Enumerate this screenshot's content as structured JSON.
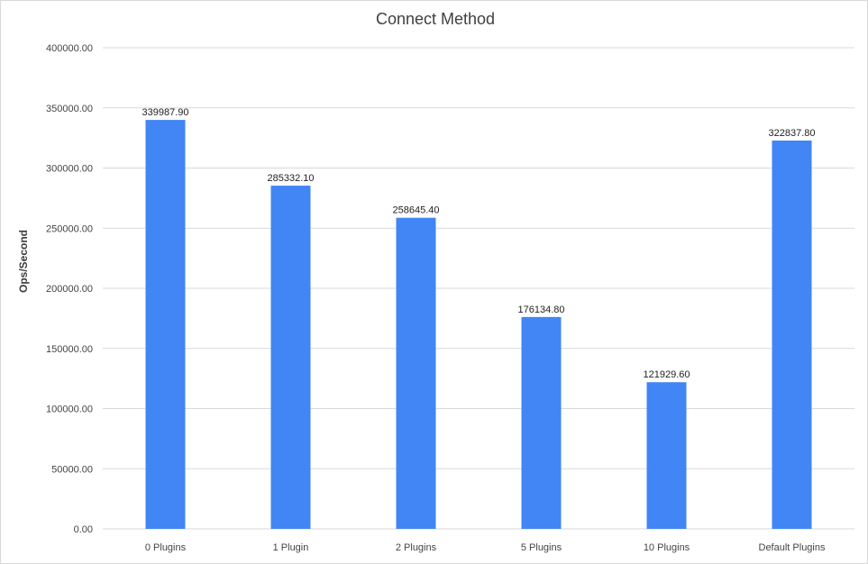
{
  "chart_data": {
    "type": "bar",
    "title": "Connect Method",
    "xlabel": "",
    "ylabel": "Ops/Second",
    "categories": [
      "0 Plugins",
      "1 Plugin",
      "2 Plugins",
      "5 Plugins",
      "10 Plugins",
      "Default Plugins"
    ],
    "values": [
      339987.9,
      285332.1,
      258645.4,
      176134.8,
      121929.6,
      322837.8
    ],
    "value_labels": [
      "339987.90",
      "285332.10",
      "258645.40",
      "176134.80",
      "121929.60",
      "322837.80"
    ],
    "yticks": [
      "0.00",
      "50000.00",
      "100000.00",
      "150000.00",
      "200000.00",
      "250000.00",
      "300000.00",
      "350000.00",
      "400000.00"
    ],
    "ylim": [
      0,
      400000
    ],
    "grid": true,
    "legend": "none",
    "bar_color": "#4285f4"
  }
}
